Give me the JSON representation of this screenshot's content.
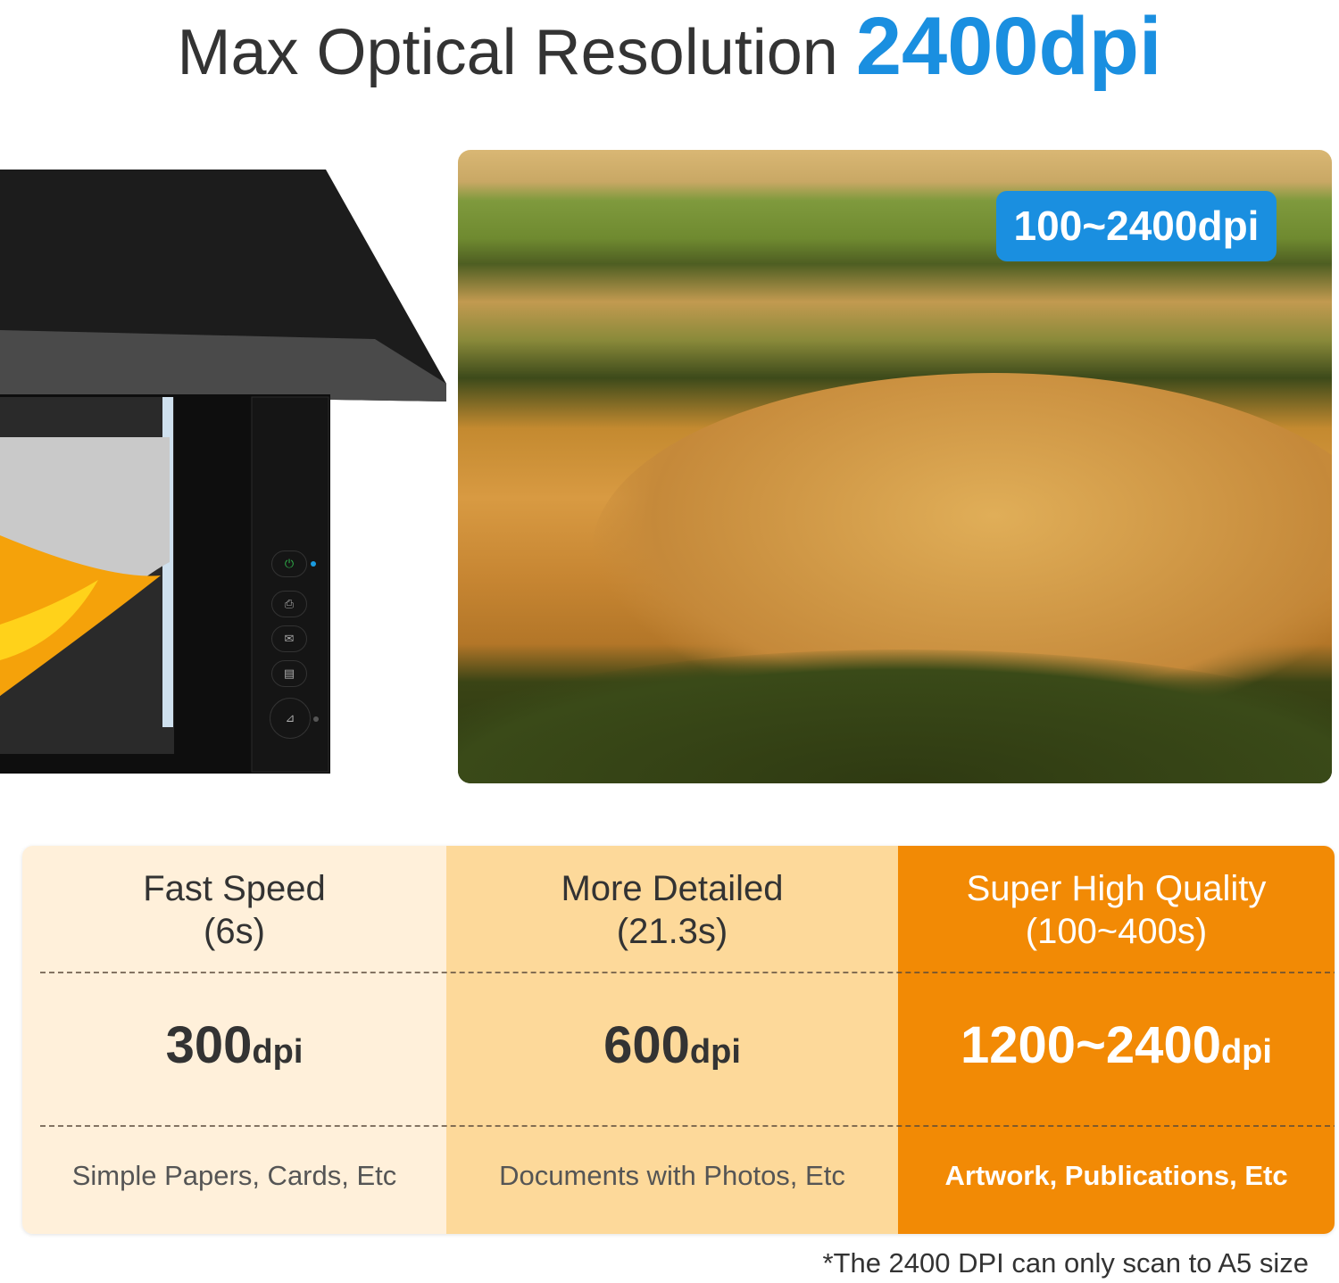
{
  "title": {
    "prefix": "Max Optical Resolution",
    "highlight": "2400dpi"
  },
  "photo": {
    "badge": "100~2400dpi"
  },
  "colors": {
    "accent_blue": "#1a8fe0",
    "col1": "#fff0da",
    "col2": "#fdd99a",
    "col3": "#f28a05"
  },
  "table": {
    "columns": [
      {
        "heading": "Fast Speed",
        "time": "(6s)",
        "dpi_value": "300",
        "dpi_unit": "dpi",
        "use": "Simple Papers, Cards, Etc"
      },
      {
        "heading": "More Detailed",
        "time": "(21.3s)",
        "dpi_value": "600",
        "dpi_unit": "dpi",
        "use": "Documents with Photos, Etc"
      },
      {
        "heading": "Super High Quality",
        "time": "(100~400s)",
        "dpi_value": "1200~2400",
        "dpi_unit": "dpi",
        "use": "Artwork, Publications, Etc"
      }
    ]
  },
  "footnote": "*The 2400 DPI can only scan to A5 size"
}
